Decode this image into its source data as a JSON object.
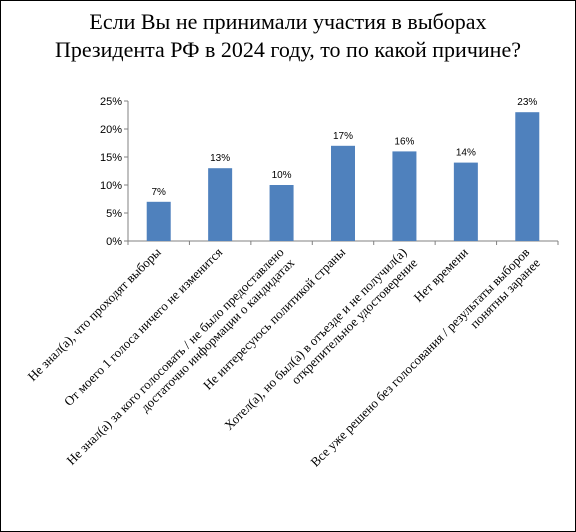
{
  "chart_data": {
    "type": "bar",
    "title": "Если Вы не принимали участия в выборах Президента РФ в 2024 году, то по какой причине?",
    "categories": [
      [
        "Не знал(а), что проходят выборы"
      ],
      [
        "От моего 1 голоса ничего не изменится"
      ],
      [
        "Не знал(а) за кого голосовать / не было предоставлено",
        "достаточно информации о кандидатах"
      ],
      [
        "Не интересуюсь политикой страны"
      ],
      [
        "Хотел(а), но был(а) в отъезде и не получил(а)",
        "открепительное удостоверение"
      ],
      [
        "Нет времени"
      ],
      [
        "Все уже решено без голосования / результаты выборов",
        "понятны заранее"
      ]
    ],
    "values": [
      7,
      13,
      10,
      17,
      16,
      14,
      23
    ],
    "data_labels": [
      "7%",
      "13%",
      "10%",
      "17%",
      "16%",
      "14%",
      "23%"
    ],
    "ylim": [
      0,
      25
    ],
    "yticks": [
      0,
      5,
      10,
      15,
      20,
      25
    ],
    "ytick_labels": [
      "0%",
      "5%",
      "10%",
      "15%",
      "20%",
      "25%"
    ],
    "grid": false,
    "legend": "none",
    "colors": {
      "bar": "#4f81bd",
      "axis": "#808080",
      "text": "#000000"
    }
  }
}
